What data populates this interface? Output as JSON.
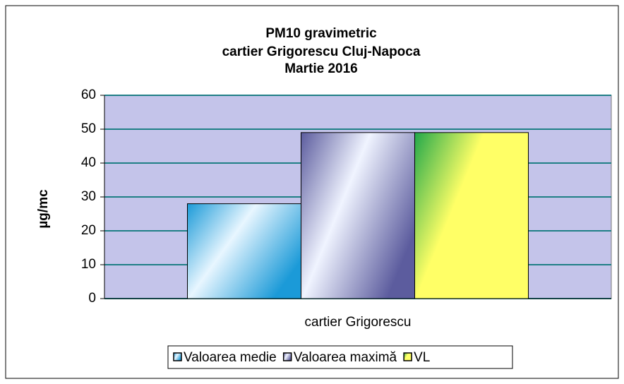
{
  "chart_data": {
    "type": "bar",
    "title": [
      "PM10 gravimetric",
      "cartier Grigorescu Cluj-Napoca",
      "Martie 2016"
    ],
    "y_label": "µg/mc",
    "categories": [
      "cartier Grigorescu"
    ],
    "series": [
      {
        "name": "Valoarea medie",
        "color": "#1b9ad8",
        "values": [
          28
        ]
      },
      {
        "name": "Valoarea maximă",
        "color": "#5c5c9e",
        "values": [
          49
        ]
      },
      {
        "name": "VL",
        "color": "#22a84a",
        "values": [
          49
        ]
      }
    ],
    "ylim": [
      0,
      60
    ],
    "yticks": [
      0,
      10,
      20,
      30,
      40,
      50,
      60
    ],
    "grid": true,
    "legend": "bottom"
  }
}
